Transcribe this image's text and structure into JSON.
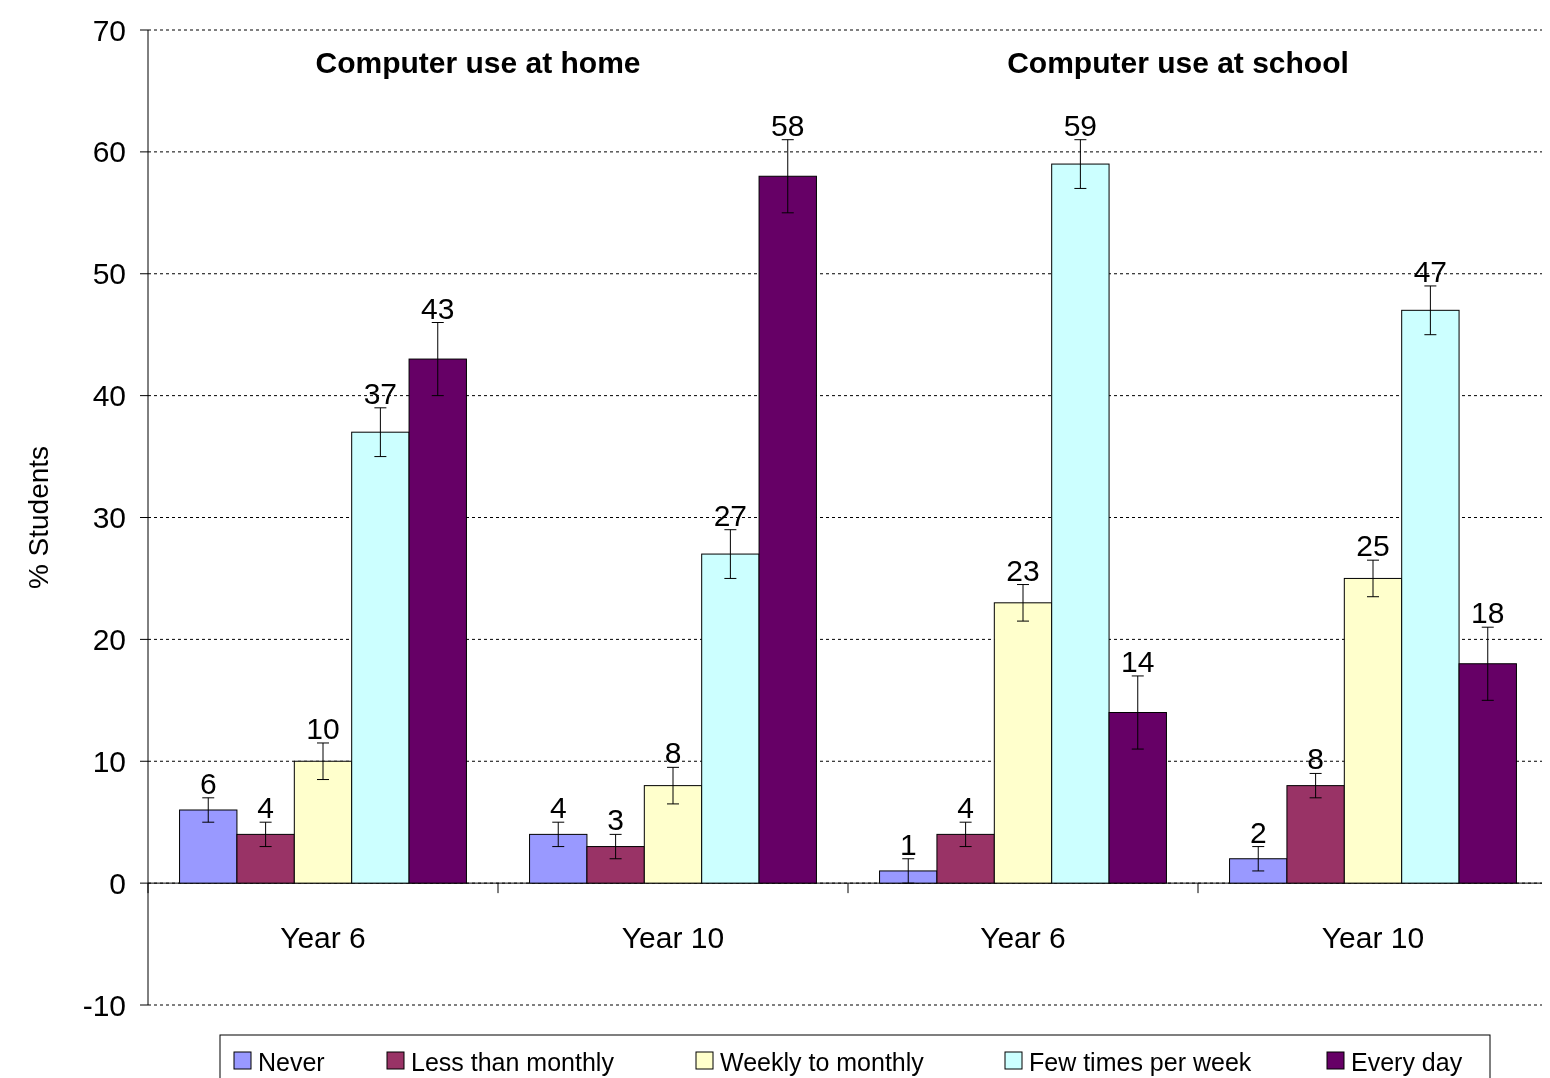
{
  "chart_data": {
    "type": "bar",
    "ylabel": "% Students",
    "categories": [
      "Year 6",
      "Year 10",
      "Year 6",
      "Year 10"
    ],
    "annotations": [
      "Computer use at home",
      "Computer use at school"
    ],
    "series": [
      {
        "name": "Never",
        "color": "#9999ff",
        "values": [
          6,
          4,
          1,
          2
        ],
        "errors": [
          1,
          1,
          1,
          1
        ]
      },
      {
        "name": "Less than monthly",
        "color": "#993366",
        "values": [
          4,
          3,
          4,
          8
        ],
        "errors": [
          1,
          1,
          1,
          1
        ]
      },
      {
        "name": "Weekly to monthly",
        "color": "#ffffcc",
        "values": [
          10,
          8,
          23,
          25
        ],
        "errors": [
          1.5,
          1.5,
          1.5,
          1.5
        ]
      },
      {
        "name": "Few times per week",
        "color": "#ccffff",
        "values": [
          37,
          27,
          59,
          47
        ],
        "errors": [
          2,
          2,
          2,
          2
        ]
      },
      {
        "name": "Every day",
        "color": "#660066",
        "values": [
          43,
          58,
          14,
          18
        ],
        "errors": [
          3,
          3,
          3,
          3
        ]
      }
    ],
    "ylim": [
      -10,
      70
    ],
    "yticks": [
      -10,
      0,
      10,
      20,
      30,
      40,
      50,
      60,
      70
    ],
    "grid": "y",
    "legend": "bottom",
    "data_labels": true
  }
}
